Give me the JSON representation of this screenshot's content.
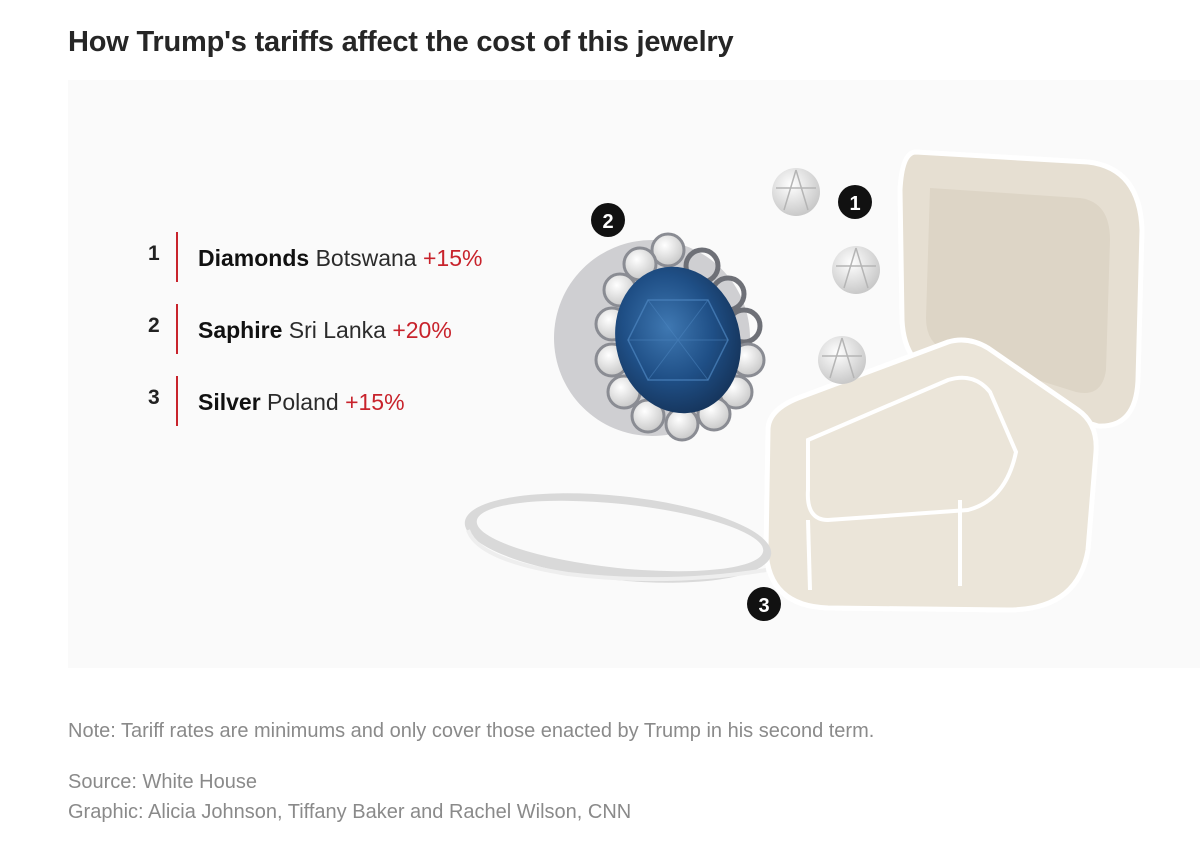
{
  "title": "How Trump's tariffs affect the cost of this jewelry",
  "legend": [
    {
      "num": "1",
      "material": "Diamonds",
      "country": "Botswana",
      "rate": "+15%"
    },
    {
      "num": "2",
      "material": "Saphire",
      "country": "Sri Lanka",
      "rate": "+20%"
    },
    {
      "num": "3",
      "material": "Silver",
      "country": "Poland",
      "rate": "+15%"
    }
  ],
  "markers": [
    "1",
    "2",
    "3"
  ],
  "note": "Note: Tariff rates are minimums and only cover those enacted by Trump in his second term.",
  "source": "Source: White House",
  "credit": "Graphic: Alicia Johnson, Tiffany Baker and Rachel Wilson, CNN",
  "colors": {
    "accent": "#c8232c",
    "sapphire": "#1f4f86",
    "box": "#e4ddd0"
  }
}
